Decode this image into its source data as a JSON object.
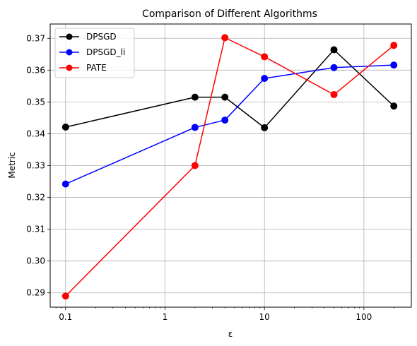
{
  "chart_data": {
    "type": "line",
    "title": "Comparison of Different Algorithms",
    "xlabel": "ε",
    "ylabel": "Metric",
    "x_scale": "log",
    "xlim": [
      0.07,
      300
    ],
    "ylim": [
      0.2855,
      0.3745
    ],
    "x_ticks": [
      0.1,
      1,
      10,
      100
    ],
    "x_tick_labels": [
      "0.1",
      "1",
      "10",
      "100"
    ],
    "y_ticks": [
      0.29,
      0.3,
      0.31,
      0.32,
      0.33,
      0.34,
      0.35,
      0.36,
      0.37
    ],
    "y_tick_labels": [
      "0.29",
      "0.30",
      "0.31",
      "0.32",
      "0.33",
      "0.34",
      "0.35",
      "0.36",
      "0.37"
    ],
    "grid": true,
    "legend_position": "top-left",
    "x": [
      0.1,
      2,
      4,
      10,
      50,
      200
    ],
    "series": [
      {
        "name": "DPSGD",
        "color": "#000000",
        "values": [
          0.3421,
          0.3515,
          0.3515,
          0.3419,
          0.3664,
          0.3487
        ]
      },
      {
        "name": "DPSGD_li",
        "color": "#0000ff",
        "values": [
          0.3242,
          0.342,
          0.3443,
          0.3574,
          0.3608,
          0.3616
        ]
      },
      {
        "name": "PATE",
        "color": "#ff0000",
        "values": [
          0.289,
          0.33,
          0.3702,
          0.3642,
          0.3523,
          0.3678
        ]
      }
    ]
  }
}
